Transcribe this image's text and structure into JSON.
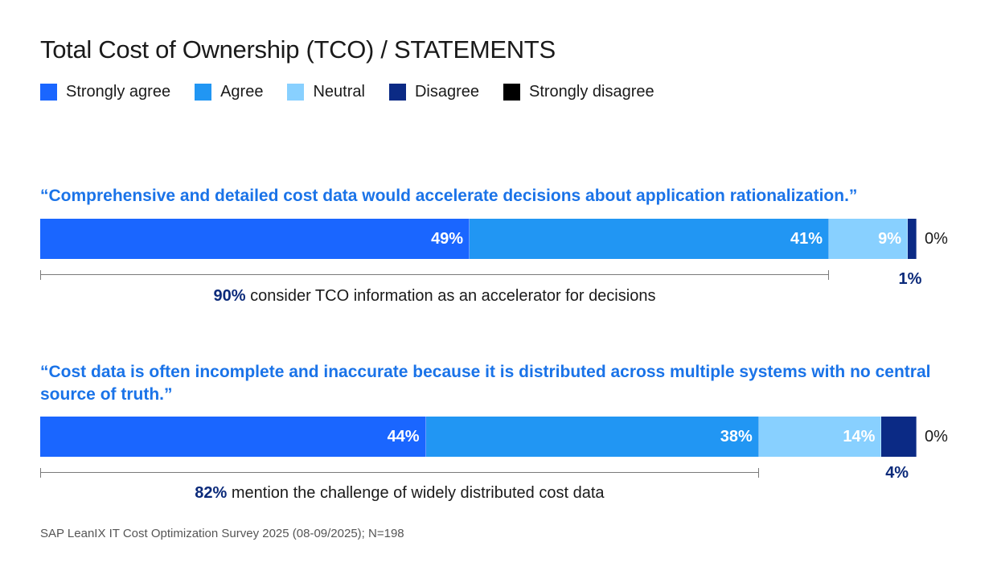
{
  "title": "Total Cost of Ownership (TCO) / STATEMENTS",
  "legend": [
    {
      "label": "Strongly agree",
      "color": "#1a66ff"
    },
    {
      "label": "Agree",
      "color": "#2196f3"
    },
    {
      "label": "Neutral",
      "color": "#88d0ff"
    },
    {
      "label": "Disagree",
      "color": "#0b2a85"
    },
    {
      "label": "Strongly disagree",
      "color": "#000000"
    }
  ],
  "statements": [
    {
      "text": "“Comprehensive and detailed cost data would accelerate decisions about application rationalization.”",
      "zero_label": "0%",
      "small_label": "1%",
      "note_value": "90%",
      "note_text": " consider TCO information as an accelerator for decisions"
    },
    {
      "text": "“Cost data is often incomplete and inaccurate because it is distributed across multiple systems with no central source of truth.”",
      "zero_label": "0%",
      "small_label": "4%",
      "note_value": "82%",
      "note_text": " mention the challenge of widely distributed cost data"
    }
  ],
  "chart_data": {
    "type": "bar",
    "orientation": "horizontal",
    "stacked": true,
    "categories": [
      "Statement 1",
      "Statement 2"
    ],
    "series": [
      {
        "name": "Strongly agree",
        "values": [
          49,
          44
        ],
        "labels": [
          "49%",
          "44%"
        ]
      },
      {
        "name": "Agree",
        "values": [
          41,
          38
        ],
        "labels": [
          "41%",
          "38%"
        ]
      },
      {
        "name": "Neutral",
        "values": [
          9,
          14
        ],
        "labels": [
          "9%",
          "14%"
        ]
      },
      {
        "name": "Disagree",
        "values": [
          1,
          4
        ],
        "labels": [
          "",
          ""
        ]
      },
      {
        "name": "Strongly disagree",
        "values": [
          0,
          0
        ],
        "labels": [
          "",
          ""
        ]
      }
    ],
    "legend_position": "top-left",
    "grid": false
  },
  "source": "SAP LeanIX IT Cost Optimization Survey 2025 (08-09/2025); N=198"
}
